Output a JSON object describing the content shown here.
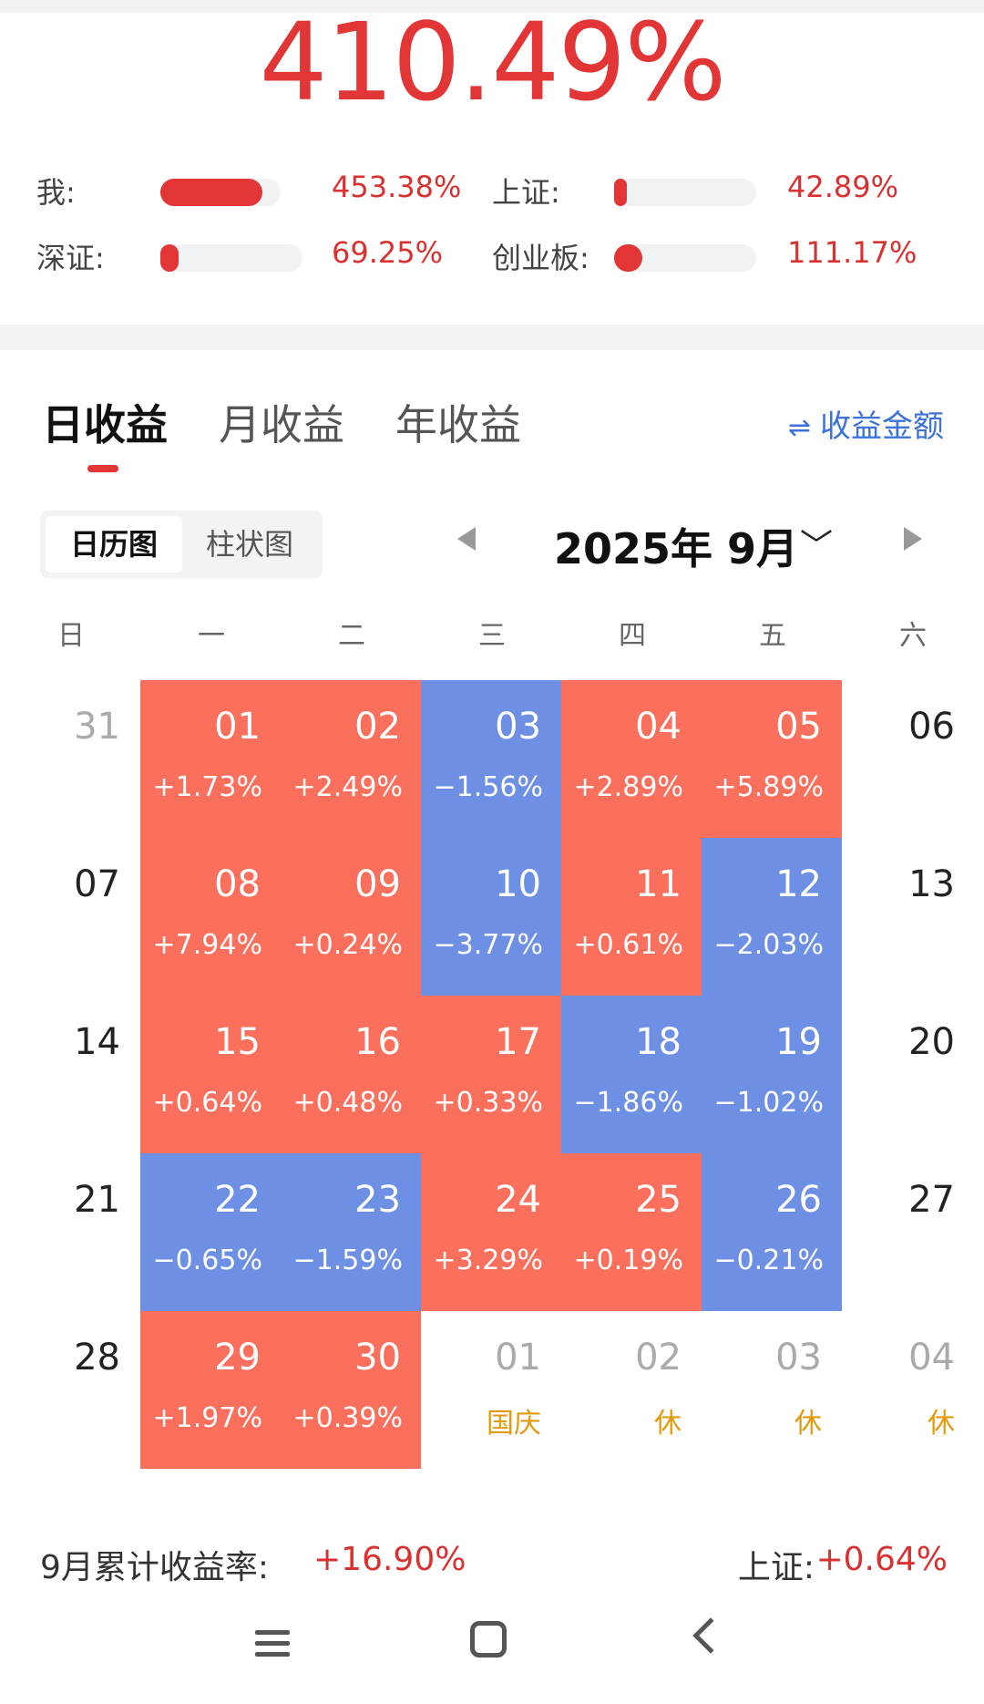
{
  "hero": {
    "value": "410.49%"
  },
  "comparisons": [
    {
      "label": "我:",
      "value": "453.38%",
      "fill": 0.85
    },
    {
      "label": "上证:",
      "value": "42.89%",
      "fill": 0.09
    },
    {
      "label": "深证:",
      "value": "69.25%",
      "fill": 0.13
    },
    {
      "label": "创业板:",
      "value": "111.17%",
      "fill": 0.2
    }
  ],
  "tabs": [
    {
      "label": "日收益",
      "active": true
    },
    {
      "label": "月收益",
      "active": false
    },
    {
      "label": "年收益",
      "active": false
    }
  ],
  "amount_toggle": {
    "icon": "swap-icon",
    "label": "收益金额"
  },
  "view_switch": [
    {
      "label": "日历图",
      "active": true
    },
    {
      "label": "柱状图",
      "active": false
    }
  ],
  "month_nav": {
    "label": "2025年 9月"
  },
  "weekdays": [
    "日",
    "一",
    "二",
    "三",
    "四",
    "五",
    "六"
  ],
  "calendar": [
    [
      {
        "day": "31",
        "kind": "other"
      },
      {
        "day": "01",
        "pct": "+1.73%",
        "kind": "pos"
      },
      {
        "day": "02",
        "pct": "+2.49%",
        "kind": "pos"
      },
      {
        "day": "03",
        "pct": "−1.56%",
        "kind": "neg"
      },
      {
        "day": "04",
        "pct": "+2.89%",
        "kind": "pos"
      },
      {
        "day": "05",
        "pct": "+5.89%",
        "kind": "pos"
      },
      {
        "day": "06",
        "kind": "plain"
      }
    ],
    [
      {
        "day": "07",
        "kind": "plain"
      },
      {
        "day": "08",
        "pct": "+7.94%",
        "kind": "pos"
      },
      {
        "day": "09",
        "pct": "+0.24%",
        "kind": "pos"
      },
      {
        "day": "10",
        "pct": "−3.77%",
        "kind": "neg"
      },
      {
        "day": "11",
        "pct": "+0.61%",
        "kind": "pos"
      },
      {
        "day": "12",
        "pct": "−2.03%",
        "kind": "neg"
      },
      {
        "day": "13",
        "kind": "plain"
      }
    ],
    [
      {
        "day": "14",
        "kind": "plain"
      },
      {
        "day": "15",
        "pct": "+0.64%",
        "kind": "pos"
      },
      {
        "day": "16",
        "pct": "+0.48%",
        "kind": "pos"
      },
      {
        "day": "17",
        "pct": "+0.33%",
        "kind": "pos"
      },
      {
        "day": "18",
        "pct": "−1.86%",
        "kind": "neg"
      },
      {
        "day": "19",
        "pct": "−1.02%",
        "kind": "neg"
      },
      {
        "day": "20",
        "kind": "plain"
      }
    ],
    [
      {
        "day": "21",
        "kind": "plain"
      },
      {
        "day": "22",
        "pct": "−0.65%",
        "kind": "neg"
      },
      {
        "day": "23",
        "pct": "−1.59%",
        "kind": "neg"
      },
      {
        "day": "24",
        "pct": "+3.29%",
        "kind": "pos"
      },
      {
        "day": "25",
        "pct": "+0.19%",
        "kind": "pos"
      },
      {
        "day": "26",
        "pct": "−0.21%",
        "kind": "neg"
      },
      {
        "day": "27",
        "kind": "plain"
      }
    ],
    [
      {
        "day": "28",
        "kind": "plain"
      },
      {
        "day": "29",
        "pct": "+1.97%",
        "kind": "pos"
      },
      {
        "day": "30",
        "pct": "+0.39%",
        "kind": "pos"
      },
      {
        "day": "01",
        "note": "国庆",
        "kind": "holiday"
      },
      {
        "day": "02",
        "note": "休",
        "kind": "holiday"
      },
      {
        "day": "03",
        "note": "休",
        "kind": "holiday"
      },
      {
        "day": "04",
        "note": "休",
        "kind": "holiday"
      }
    ]
  ],
  "summary": {
    "month_label": "9月累计收益率:",
    "month_value": "+16.90%",
    "index_label": "上证:",
    "index_value": "+0.64%"
  },
  "colors": {
    "accent_red": "#e23535",
    "gain_cell": "#fb6f5d",
    "loss_cell": "#6d8fe4",
    "link_blue": "#3d73d8",
    "holiday_orange": "#e19a0d"
  },
  "system_nav": [
    "menu-icon",
    "home-icon",
    "back-icon"
  ]
}
